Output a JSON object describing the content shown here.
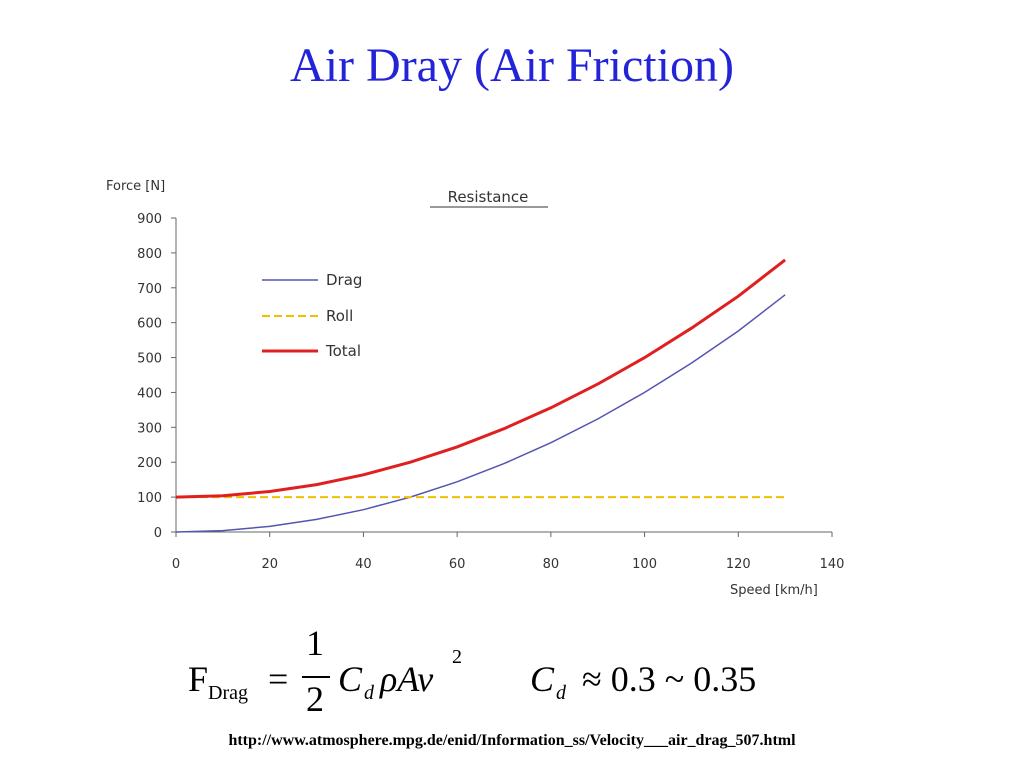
{
  "slide": {
    "title": "Air Dray (Air Friction)",
    "url": "http://www.atmosphere.mpg.de/enid/Information_ss/Velocity___air_drag_507.html"
  },
  "formula": {
    "lhs_main": "F",
    "lhs_sub": "Drag",
    "equals": "=",
    "frac_num": "1",
    "frac_den": "2",
    "cd": "C",
    "cd_sub": "d",
    "rest": "ρAv",
    "exponent": "2",
    "cd2": "C",
    "cd2_sub": "d",
    "approx": "≈ 0.3 ~ 0.35"
  },
  "chart_data": {
    "type": "line",
    "title": "Resistance",
    "ylabel": "Force [N]",
    "xlabel": "Speed [km/h]",
    "xlim": [
      0,
      140
    ],
    "ylim": [
      0,
      900
    ],
    "xticks": [
      "0",
      "20",
      "40",
      "60",
      "80",
      "100",
      "120",
      "140"
    ],
    "yticks": [
      "0",
      "100",
      "200",
      "300",
      "400",
      "500",
      "600",
      "700",
      "800",
      "900"
    ],
    "grid": false,
    "legend_position": "top-left",
    "series": [
      {
        "name": "Drag",
        "color": "#5555b0",
        "style": "solid",
        "x": [
          0,
          10,
          20,
          30,
          40,
          50,
          60,
          70,
          80,
          90,
          100,
          110,
          120,
          130
        ],
        "values": [
          0,
          4,
          16,
          36,
          64,
          100,
          144,
          196,
          256,
          324,
          400,
          484,
          576,
          680
        ]
      },
      {
        "name": "Roll",
        "color": "#f0c000",
        "style": "dashed",
        "x": [
          0,
          130
        ],
        "values": [
          100,
          100
        ]
      },
      {
        "name": "Total",
        "color": "#e02020",
        "style": "solid",
        "x": [
          0,
          10,
          20,
          30,
          40,
          50,
          60,
          70,
          80,
          90,
          100,
          110,
          120,
          130
        ],
        "values": [
          100,
          104,
          116,
          136,
          164,
          200,
          244,
          296,
          356,
          424,
          500,
          584,
          676,
          780
        ]
      }
    ]
  }
}
